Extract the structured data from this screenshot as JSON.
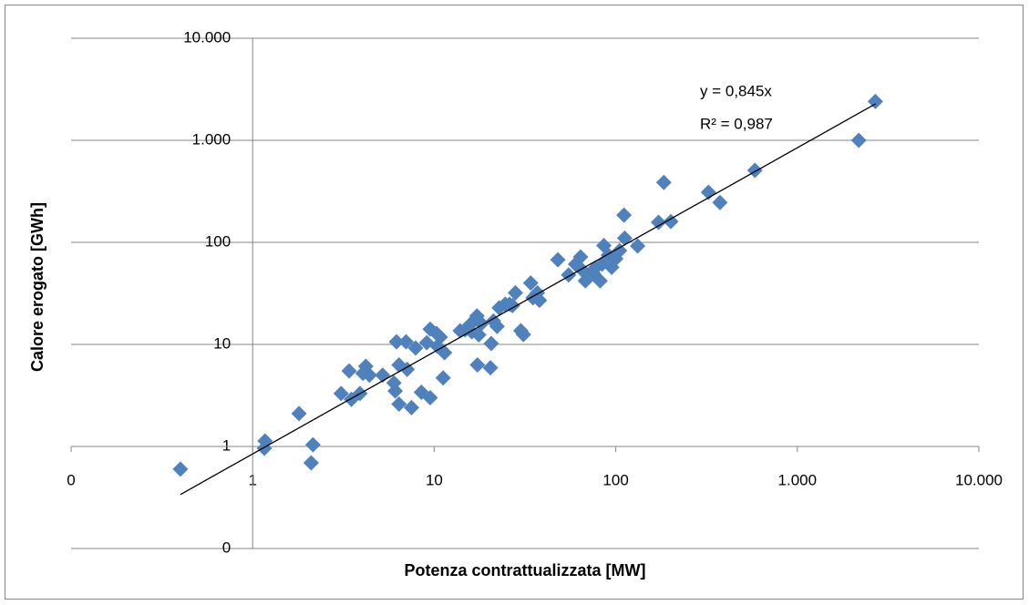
{
  "chart_data": {
    "type": "scatter",
    "x_label": "Potenza contrattualizzata [MW]",
    "y_label": "Calore erogato [GWh]",
    "color": "#4f81bd",
    "log_x": true,
    "log_y": true,
    "grid": true,
    "x_axis_at_y": 1,
    "y_axis_at_x": 1,
    "xlim": [
      0.1,
      10000
    ],
    "ylim": [
      0.1,
      10000
    ],
    "xticks": [
      {
        "value": 0.1,
        "label": "0"
      },
      1,
      10,
      100,
      {
        "value": 1000,
        "label": "1.000"
      },
      {
        "value": 10000,
        "label": "10.000"
      }
    ],
    "yticks": [
      {
        "value": 0.1,
        "label": "0"
      },
      1,
      10,
      100,
      {
        "value": 1000,
        "label": "1.000"
      },
      {
        "value": 10000,
        "label": "10.000"
      }
    ],
    "x": [
      0.4,
      1.17,
      1.16,
      1.8,
      2.15,
      2.1,
      3.07,
      3.4,
      3.5,
      3.9,
      4.05,
      4.2,
      4.4,
      5.2,
      6.0,
      6.1,
      6.2,
      6.4,
      6.4,
      7.0,
      7.1,
      7.5,
      7.9,
      8.5,
      9.1,
      9.5,
      9.5,
      10.3,
      10.4,
      10.8,
      11.4,
      11.2,
      13.9,
      14.8,
      15.8,
      16.1,
      17.2,
      17.3,
      17.6,
      18.2,
      20.4,
      20.6,
      21.2,
      22.2,
      22.8,
      24.6,
      26,
      27,
      28,
      30,
      31,
      34,
      35,
      37,
      38,
      48,
      55,
      60,
      65,
      64,
      68,
      75,
      77,
      82,
      84,
      86,
      91,
      95,
      100,
      105,
      111,
      112,
      132,
      172,
      184,
      201,
      324,
      375,
      584,
      2180,
      2690
    ],
    "values": [
      0.6,
      1.13,
      0.96,
      2.1,
      1.04,
      0.69,
      3.3,
      5.5,
      2.9,
      3.3,
      5.2,
      6.1,
      5.0,
      5.0,
      4.2,
      3.5,
      10.6,
      6.3,
      2.6,
      10.6,
      5.7,
      2.4,
      9.2,
      3.4,
      10.4,
      14.1,
      3.0,
      12.8,
      9.6,
      11.8,
      8.3,
      4.7,
      13.6,
      13.9,
      15.7,
      13.3,
      19,
      6.3,
      12.4,
      16,
      5.9,
      10.2,
      17,
      15,
      22.8,
      24.8,
      24.8,
      24,
      32,
      13.6,
      12.5,
      40,
      28.6,
      32,
      27,
      67.5,
      48,
      61,
      54,
      72,
      42,
      50,
      56,
      42,
      61,
      93,
      75,
      57,
      69,
      83,
      185,
      110,
      92,
      157,
      386,
      160,
      310,
      246,
      507,
      1000,
      2400
    ],
    "trendline": {
      "slope": 0.845,
      "x_range": [
        0.4,
        2700
      ],
      "label": "y = 0,845x",
      "r2_label": "R² = 0,987"
    }
  }
}
